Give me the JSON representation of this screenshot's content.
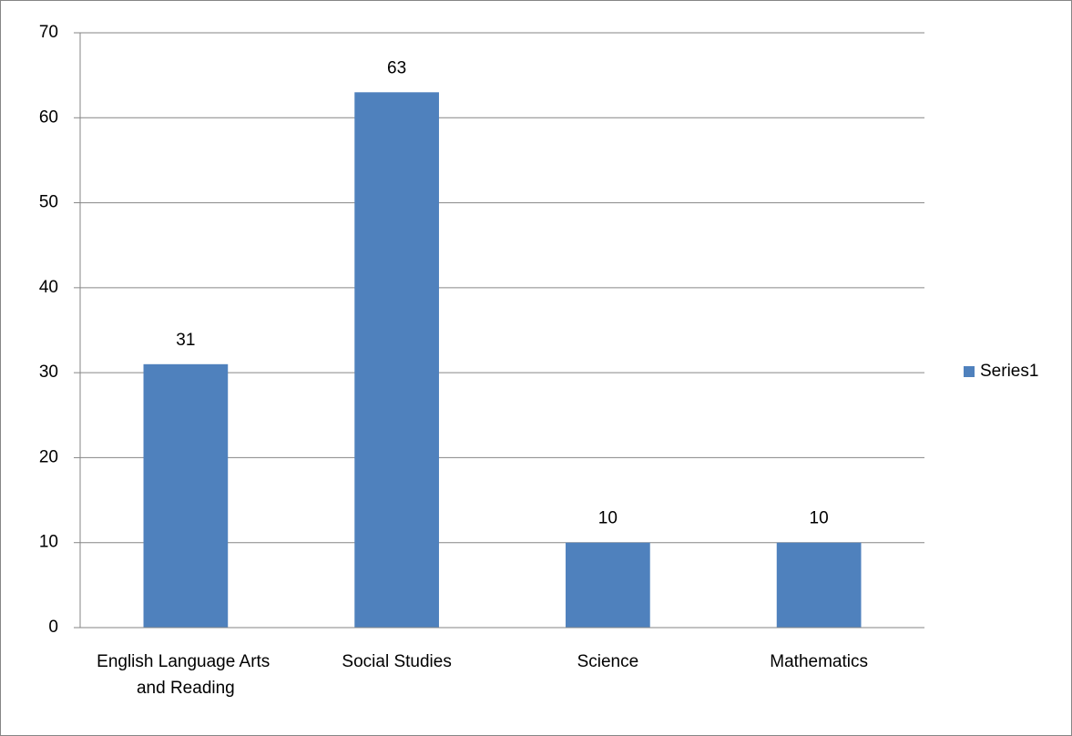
{
  "chart_data": {
    "type": "bar",
    "categories": [
      "English Language Arts and Reading",
      "Social Studies",
      "Science",
      "Mathematics"
    ],
    "series": [
      {
        "name": "Series1",
        "color": "#4f81bd",
        "values": [
          31,
          63,
          10,
          10
        ]
      }
    ],
    "ylim": [
      0,
      70
    ],
    "yticks": [
      0,
      10,
      20,
      30,
      40,
      50,
      60,
      70
    ],
    "grid": true,
    "legend": "right",
    "data_labels": true
  }
}
